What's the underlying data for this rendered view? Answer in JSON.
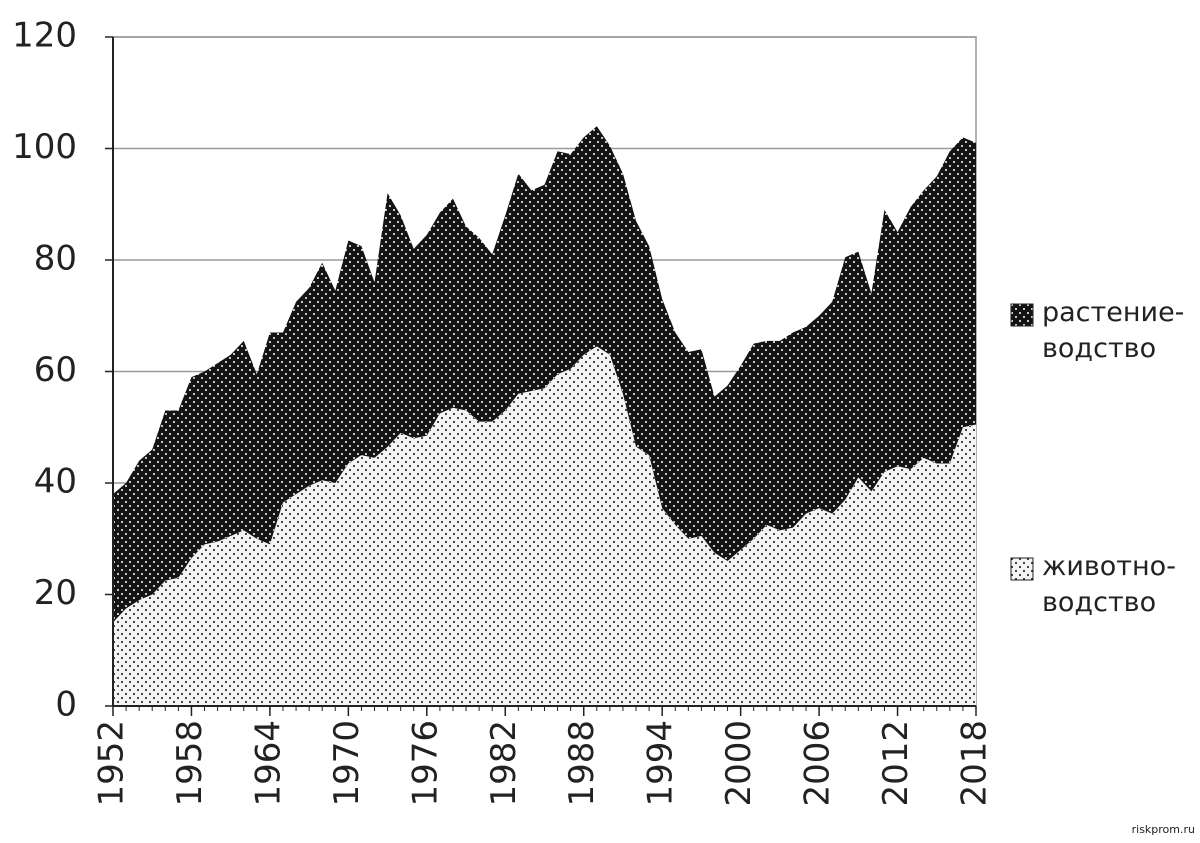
{
  "chart_data": {
    "type": "stacked_area",
    "x": [
      1952,
      1953,
      1954,
      1955,
      1956,
      1957,
      1958,
      1959,
      1960,
      1961,
      1962,
      1963,
      1964,
      1965,
      1966,
      1967,
      1968,
      1969,
      1970,
      1971,
      1972,
      1973,
      1974,
      1975,
      1976,
      1977,
      1978,
      1979,
      1980,
      1981,
      1982,
      1983,
      1984,
      1985,
      1986,
      1987,
      1988,
      1989,
      1990,
      1991,
      1992,
      1993,
      1994,
      1995,
      1996,
      1997,
      1998,
      1999,
      2000,
      2001,
      2002,
      2003,
      2004,
      2005,
      2006,
      2007,
      2008,
      2009,
      2010,
      2011,
      2012,
      2013,
      2014,
      2015,
      2016,
      2017,
      2018
    ],
    "series": [
      {
        "name": "животно-водство",
        "color": "#f4f4f4",
        "dot_color": "#111111",
        "values": [
          15,
          17.5,
          19,
          20,
          22.5,
          23,
          26.5,
          29,
          29.5,
          30.5,
          31.5,
          30,
          29,
          36.5,
          38,
          39.5,
          40.5,
          40,
          43.5,
          45,
          44.5,
          46.5,
          49,
          48,
          48.5,
          52.5,
          53.5,
          53,
          51,
          51,
          53,
          56,
          56.5,
          57,
          59.5,
          60.5,
          63,
          64.5,
          63,
          56,
          46.5,
          45,
          35.5,
          32.5,
          30,
          30.5,
          27.5,
          26,
          28,
          30,
          32.5,
          31.5,
          32,
          34.5,
          35.5,
          34.5,
          37,
          41,
          38.5,
          42,
          43,
          42.5,
          44.5,
          43.5,
          43.5,
          50,
          50.5
        ]
      },
      {
        "name": "растение-водство",
        "color": "#141414",
        "dot_color": "#ffffff",
        "values": [
          23,
          22.5,
          25,
          26,
          30.5,
          30,
          32.5,
          31,
          32,
          32.5,
          34,
          29.5,
          38,
          30.5,
          34.5,
          35.5,
          39,
          34.5,
          40,
          37.5,
          31.5,
          45.5,
          39,
          34,
          36,
          36,
          37.5,
          33,
          33,
          30,
          35,
          39.5,
          36,
          36.5,
          40,
          38.5,
          39,
          39.5,
          37.5,
          39.5,
          40.5,
          37.5,
          37.5,
          34.5,
          33.5,
          33.5,
          28,
          31.5,
          33,
          35,
          33,
          34,
          35,
          33.5,
          34.5,
          38,
          43.5,
          40.5,
          35.5,
          47,
          42,
          47,
          48,
          51.5,
          56,
          52,
          50.5
        ]
      }
    ],
    "xlim": [
      1952,
      2018
    ],
    "xticks": [
      1952,
      1958,
      1964,
      1970,
      1976,
      1982,
      1988,
      1994,
      2000,
      2006,
      2012,
      2018
    ],
    "ylim": [
      0,
      120
    ],
    "yticks": [
      0,
      20,
      40,
      60,
      80,
      100,
      120
    ],
    "grid": true,
    "source": "riskprom.ru"
  }
}
